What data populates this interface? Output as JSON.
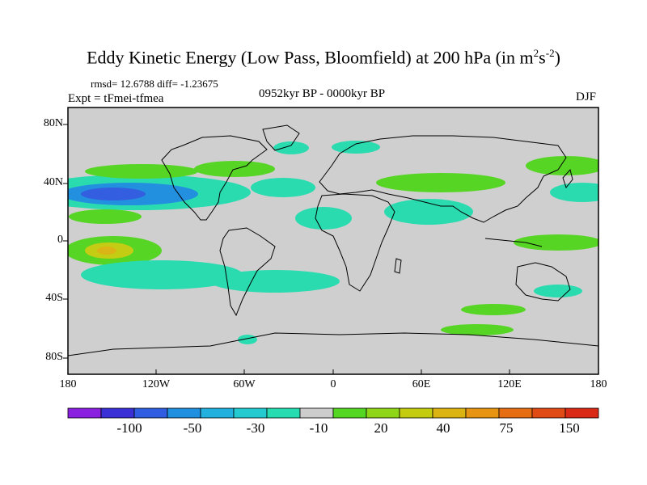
{
  "header": {
    "title": "Eddy Kinetic Energy (Low Pass, Bloomfield) at 200 hPa (in m",
    "unit_exp1": "2",
    "unit_mid": "s",
    "unit_exp2": "-2",
    "unit_close": ")",
    "stats": "rmsd= 12.6788 diff= -1.23675",
    "experiment": "Expt = tFmei-tfmea",
    "period": "0952kyr BP - 0000kyr BP",
    "season": "DJF"
  },
  "map": {
    "y_labels": [
      "80N",
      "40N",
      "0",
      "40S",
      "80S"
    ],
    "x_labels": [
      "180",
      "120W",
      "60W",
      "0",
      "60E",
      "120E",
      "180"
    ]
  },
  "colorbar": {
    "labels": [
      "-100",
      "-50",
      "-30",
      "-10",
      "20",
      "40",
      "75",
      "150"
    ],
    "colors": [
      "#8a1fe0",
      "#3b2fd6",
      "#2f5ce0",
      "#1f8fe0",
      "#22b0de",
      "#23cbd0",
      "#27dcb0",
      "#cccccc",
      "#55d622",
      "#8fd618",
      "#c4cc10",
      "#dcb412",
      "#e69412",
      "#e66d12",
      "#e04a14",
      "#d82a14"
    ]
  },
  "colors": {
    "land_outline": "#000000",
    "map_background": "#cfcfcf",
    "frame": "#000000"
  }
}
